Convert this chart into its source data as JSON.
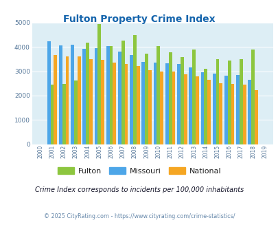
{
  "title": "Fulton Property Crime Index",
  "title_color": "#1464ac",
  "years": [
    2000,
    2001,
    2002,
    2003,
    2004,
    2005,
    2006,
    2007,
    2008,
    2009,
    2010,
    2011,
    2012,
    2013,
    2014,
    2015,
    2016,
    2017,
    2018,
    2019
  ],
  "fulton": [
    null,
    2450,
    2480,
    2620,
    4180,
    4950,
    4050,
    4270,
    4480,
    3730,
    4030,
    3790,
    3590,
    3900,
    3100,
    3490,
    3450,
    3510,
    3900,
    null
  ],
  "missouri": [
    null,
    4230,
    4060,
    4090,
    3930,
    3950,
    4050,
    3820,
    3680,
    3380,
    3360,
    3330,
    3310,
    3160,
    2950,
    2910,
    2830,
    2860,
    2650,
    null
  ],
  "national": [
    null,
    3660,
    3620,
    3600,
    3500,
    3460,
    3350,
    3290,
    3220,
    3060,
    2980,
    2980,
    2890,
    2790,
    2640,
    2510,
    2470,
    2440,
    2220,
    null
  ],
  "fulton_color": "#8dc63f",
  "missouri_color": "#4da6e8",
  "national_color": "#f5a623",
  "bg_color": "#ddeef5",
  "ylim": [
    0,
    5000
  ],
  "yticks": [
    0,
    1000,
    2000,
    3000,
    4000,
    5000
  ],
  "note": "Crime Index corresponds to incidents per 100,000 inhabitants",
  "copyright": "© 2025 CityRating.com - https://www.cityrating.com/crime-statistics/",
  "note_color": "#1a1a2e",
  "copyright_color": "#6688aa",
  "legend_label_color": "#222222"
}
